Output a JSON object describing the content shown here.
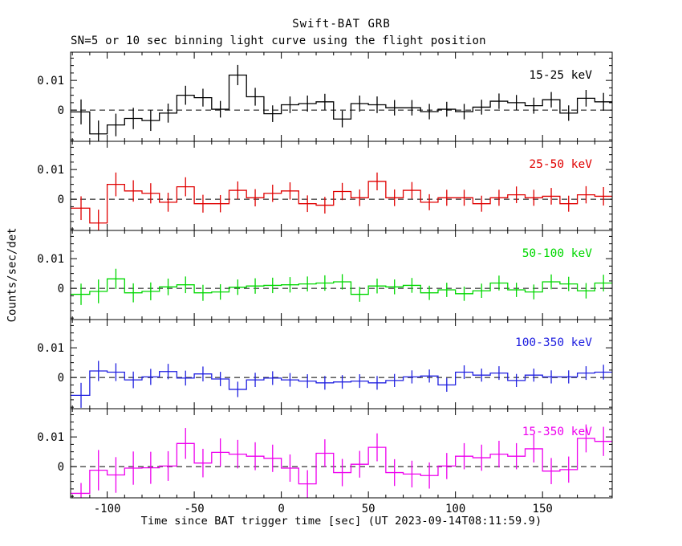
{
  "figure": {
    "title": "Swift-BAT GRB",
    "subtitle": "SN=5 or 10 sec binning light curve using the flight position",
    "ylabel": "Counts/sec/det",
    "xlabel": "Time since BAT trigger time [sec] (UT 2023-09-14T08:11:59.9)",
    "background_color": "#ffffff",
    "axis_color": "#000000"
  },
  "chart_data": {
    "type": "line",
    "subtype": "step-histogram-with-error-bars",
    "title": "Swift-BAT GRB",
    "subtitle": "SN=5 or 10 sec binning light curve using the flight position",
    "xlabel": "Time since BAT trigger time [sec] (UT 2023-09-14T08:11:59.9)",
    "ylabel": "Counts/sec/det",
    "xlim": [
      -121,
      190
    ],
    "ylim": [
      -0.0105,
      0.0195
    ],
    "x_major_ticks": [
      -100,
      -50,
      0,
      50,
      100,
      150
    ],
    "x_major_tick_labels": [
      "-100",
      "-50",
      "0",
      "50",
      "100",
      "150"
    ],
    "x_minor_step": 10,
    "y_labeled_ticks": [
      {
        "value": 0.01,
        "label": "0.01"
      },
      {
        "value": 0,
        "label": "0"
      }
    ],
    "y_minor_step": 0.0025,
    "grid": false,
    "zero_line": {
      "style": "dashed",
      "color": "#000000"
    },
    "legend_position": "top-right-inside-each-panel",
    "bin_width": 10,
    "t": [
      -120,
      -110,
      -100,
      -90,
      -80,
      -70,
      -60,
      -50,
      -40,
      -30,
      -20,
      -10,
      0,
      10,
      20,
      30,
      40,
      50,
      60,
      70,
      80,
      90,
      100,
      110,
      120,
      130,
      140,
      150,
      160,
      170,
      180
    ],
    "series": [
      {
        "name": "15-25 keV",
        "color": "#000000",
        "y": [
          -0.0006,
          -0.008,
          -0.005,
          -0.0028,
          -0.0035,
          -0.001,
          0.005,
          0.0042,
          0.0003,
          0.0118,
          0.0045,
          -0.0012,
          0.0018,
          0.0022,
          0.0028,
          -0.003,
          0.0022,
          0.0018,
          0.0008,
          0.0008,
          -0.0005,
          0.0003,
          -0.0005,
          0.001,
          0.003,
          0.0025,
          0.0015,
          0.0035,
          -0.001,
          0.004,
          0.0028
        ],
        "e": [
          0.0042,
          0.0045,
          0.0038,
          0.0036,
          0.0035,
          0.0032,
          0.0032,
          0.003,
          0.0028,
          0.0034,
          0.003,
          0.0028,
          0.0028,
          0.0027,
          0.0027,
          0.0028,
          0.0027,
          0.0028,
          0.0026,
          0.0026,
          0.0026,
          0.0025,
          0.0026,
          0.0025,
          0.0026,
          0.0026,
          0.0027,
          0.0026,
          0.0026,
          0.0028,
          0.003
        ]
      },
      {
        "name": "25-50 keV",
        "color": "#e00000",
        "y": [
          -0.003,
          -0.008,
          0.005,
          0.0028,
          0.002,
          -0.001,
          0.0042,
          -0.0015,
          -0.0015,
          0.003,
          0.0005,
          0.002,
          0.0028,
          -0.0015,
          -0.002,
          0.0026,
          0.0005,
          0.006,
          0.0005,
          0.003,
          -0.001,
          0.0005,
          0.0005,
          -0.0015,
          0.0005,
          0.0015,
          0.0005,
          0.001,
          -0.0015,
          0.0015,
          0.001
        ],
        "e": [
          0.004,
          0.0045,
          0.004,
          0.0036,
          0.0034,
          0.0032,
          0.0032,
          0.003,
          0.0029,
          0.003,
          0.0029,
          0.0029,
          0.0029,
          0.0028,
          0.0028,
          0.0029,
          0.0028,
          0.003,
          0.0028,
          0.0028,
          0.0027,
          0.0027,
          0.0027,
          0.0027,
          0.0027,
          0.0028,
          0.0027,
          0.0028,
          0.0027,
          0.0029,
          0.0031
        ]
      },
      {
        "name": "50-100 keV",
        "color": "#00d800",
        "y": [
          -0.002,
          -0.001,
          0.0032,
          -0.0015,
          -0.001,
          0.0005,
          0.0012,
          -0.0015,
          -0.0012,
          0.0004,
          0.0008,
          0.001,
          0.0012,
          0.0015,
          0.0018,
          0.0022,
          -0.002,
          0.0008,
          0.0005,
          0.001,
          -0.0015,
          -0.0005,
          -0.0018,
          -0.0008,
          0.0018,
          -0.0005,
          -0.0012,
          0.0022,
          0.0015,
          -0.0008,
          0.0018
        ],
        "e": [
          0.0036,
          0.004,
          0.0034,
          0.0032,
          0.003,
          0.0028,
          0.0028,
          0.0027,
          0.0026,
          0.0026,
          0.0026,
          0.0026,
          0.0026,
          0.0025,
          0.0026,
          0.0026,
          0.0025,
          0.0025,
          0.0025,
          0.0025,
          0.0024,
          0.0024,
          0.0024,
          0.0024,
          0.0025,
          0.0024,
          0.0025,
          0.0025,
          0.0024,
          0.0026,
          0.0028
        ]
      },
      {
        "name": "100-350 keV",
        "color": "#2020e0",
        "y": [
          -0.006,
          0.0022,
          0.0018,
          -0.0008,
          0.0002,
          0.002,
          -0.0002,
          0.0012,
          -0.0005,
          -0.004,
          -0.0008,
          -0.0002,
          -0.0008,
          -0.0012,
          -0.0018,
          -0.0015,
          -0.0012,
          -0.0018,
          -0.001,
          0.0002,
          0.0005,
          -0.0025,
          0.0018,
          0.0008,
          0.0015,
          -0.001,
          0.0008,
          0.0002,
          0.0002,
          0.0015,
          0.0018
        ],
        "e": [
          0.0042,
          0.0034,
          0.003,
          0.0028,
          0.0027,
          0.0026,
          0.0025,
          0.0025,
          0.0024,
          0.0026,
          0.0024,
          0.0023,
          0.0023,
          0.0023,
          0.0023,
          0.0023,
          0.0023,
          0.0023,
          0.0022,
          0.0022,
          0.0022,
          0.0023,
          0.0023,
          0.0022,
          0.0023,
          0.0022,
          0.0022,
          0.0022,
          0.0022,
          0.0023,
          0.0025
        ]
      },
      {
        "name": "15-350 keV",
        "color": "#ee00ee",
        "y": [
          -0.009,
          -0.0012,
          -0.0028,
          -0.0005,
          -0.0004,
          0.0002,
          0.0078,
          0.0012,
          0.0048,
          0.0042,
          0.0035,
          0.0028,
          -0.0005,
          -0.0058,
          0.0045,
          -0.002,
          0.0008,
          0.0065,
          -0.002,
          -0.0025,
          -0.003,
          0.0002,
          0.0035,
          0.003,
          0.0042,
          0.0035,
          0.006,
          -0.0015,
          -0.001,
          0.0095,
          0.0085
        ],
        "e": [
          0.0035,
          0.0068,
          0.006,
          0.0056,
          0.0054,
          0.005,
          0.0052,
          0.0048,
          0.0047,
          0.0048,
          0.0047,
          0.0046,
          0.0046,
          0.0046,
          0.0047,
          0.0046,
          0.0045,
          0.0047,
          0.0045,
          0.0045,
          0.0044,
          0.0044,
          0.0044,
          0.0044,
          0.0045,
          0.0044,
          0.0046,
          0.0044,
          0.0044,
          0.0047,
          0.0049
        ]
      }
    ]
  }
}
